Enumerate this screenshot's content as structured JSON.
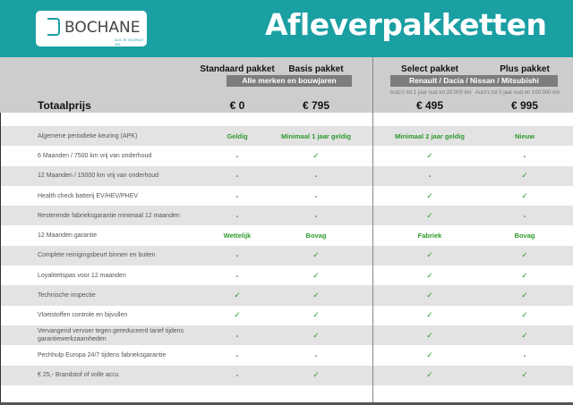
{
  "header": {
    "logo_text": "BOCHANE",
    "logo_tagline": "ALS JE VOORUIT WIL",
    "title": "Afleverpakketten"
  },
  "columns": [
    {
      "name": "Standaard pakket",
      "price": "€ 0"
    },
    {
      "name": "Basis pakket",
      "price": "€ 795"
    },
    {
      "name": "Select pakket",
      "price": "€ 495",
      "note": "Auto's tot 1 jaar oud en 20.000 km"
    },
    {
      "name": "Plus pakket",
      "price": "€ 995",
      "note": "Auto's tot 5 jaar oud en 100.000 km"
    }
  ],
  "banners": {
    "left": "Alle merken en bouwjaren",
    "right": "Renault / Dacia / Nissan / Mitsubishi"
  },
  "total_label": "Totaalprijs",
  "rows": [
    {
      "label": "Algemene periodieke keuring (APK)",
      "values": [
        "Geldig",
        "Minimaal 1 jaar geldig",
        "Minimaal 2 jaar geldig",
        "Nieuw"
      ]
    },
    {
      "label": "6 Maanden / 7500 km vrij van onderhoud",
      "values": [
        "-",
        "✓",
        "✓",
        "-"
      ]
    },
    {
      "label": "12 Maanden / 15000 km vrij van onderhoud",
      "values": [
        "-",
        "-",
        "-",
        "✓"
      ]
    },
    {
      "label": "Health check batterij EV/HEV/PHEV",
      "values": [
        "-",
        "-",
        "✓",
        "✓"
      ]
    },
    {
      "label": "Resterende fabrieksgarantie minimaal 12 maanden",
      "values": [
        "-",
        "-",
        "✓",
        "-"
      ]
    },
    {
      "label": "12 Maanden  garantie",
      "values": [
        "Wettelijk",
        "Bovag",
        "Fabriek",
        "Bovag"
      ]
    },
    {
      "label": "Complete reinigingsbeurt binnen en buiten",
      "values": [
        "-",
        "✓",
        "✓",
        "✓"
      ]
    },
    {
      "label": "Loyaliteitspas voor 12 maanden",
      "values": [
        "-",
        "✓",
        "✓",
        "✓"
      ]
    },
    {
      "label": "Technische inspectie",
      "values": [
        "✓",
        "✓",
        "✓",
        "✓"
      ]
    },
    {
      "label": "Vloeistoffen controle en bijvullen",
      "values": [
        "✓",
        "✓",
        "✓",
        "✓"
      ]
    },
    {
      "label": "Vervangend vervoer tegen gereduceerd tarief tijdens garantiewerkzaamheden",
      "values": [
        "-",
        "✓",
        "✓",
        "✓"
      ]
    },
    {
      "label": "Pechhulp Europa 24/7 tijdens fabrieksgarantie",
      "values": [
        "-",
        "-",
        "✓",
        "-"
      ]
    },
    {
      "label": "€ 25,- Brandstof of  volle accu",
      "values": [
        "-",
        "✓",
        "✓",
        "✓"
      ]
    }
  ],
  "colors": {
    "brand": "#1a9fa3",
    "accent_green": "#2e9a2e"
  }
}
